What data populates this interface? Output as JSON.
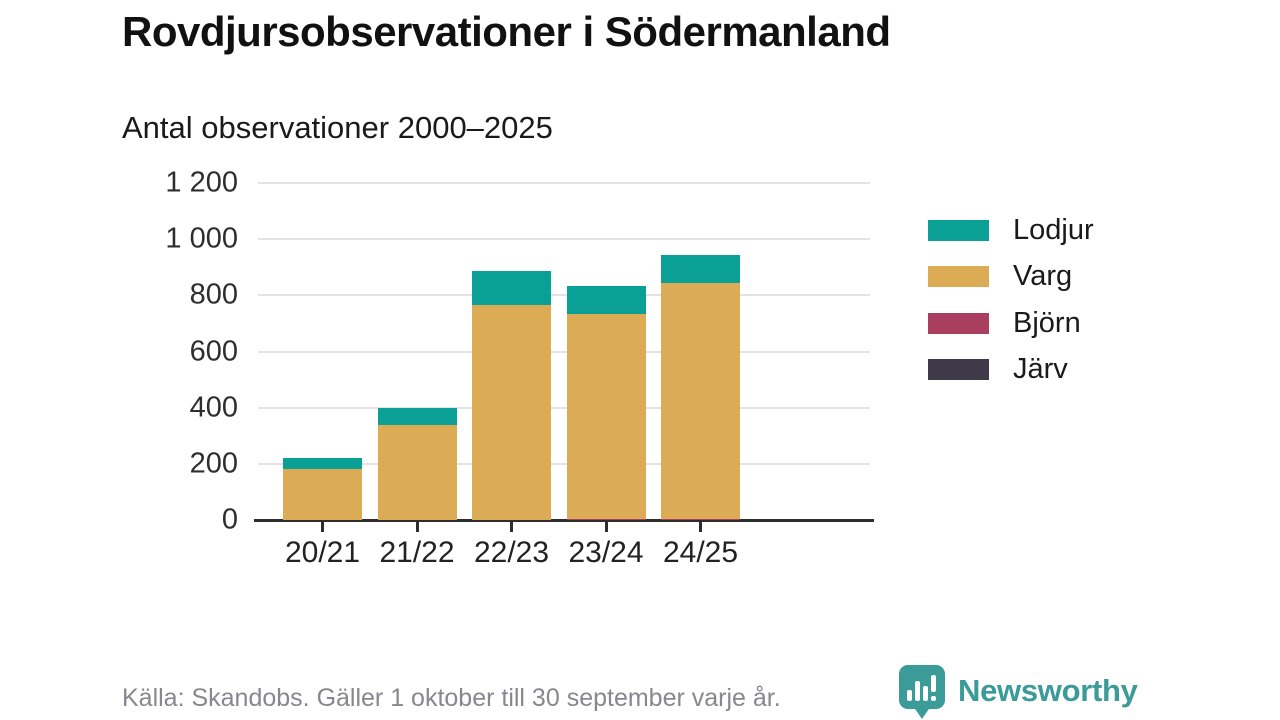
{
  "header": {
    "title": "Rovdjursobservationer i Södermanland",
    "subtitle": "Antal observationer 2000–2025"
  },
  "chart_data": {
    "type": "bar",
    "stacked": true,
    "title": "Rovdjursobservationer i Södermanland",
    "subtitle": "Antal observationer 2000–2025",
    "categories": [
      "20/21",
      "21/22",
      "22/23",
      "23/24",
      "24/25"
    ],
    "series": [
      {
        "name": "Lodjur",
        "color": "#0ba095",
        "values": [
          40,
          60,
          120,
          100,
          100
        ]
      },
      {
        "name": "Varg",
        "color": "#dcab55",
        "values": [
          180,
          340,
          765,
          730,
          840
        ]
      },
      {
        "name": "Björn",
        "color": "#a93e5e",
        "values": [
          0,
          0,
          0,
          5,
          5
        ]
      },
      {
        "name": "Järv",
        "color": "#3e3a4a",
        "values": [
          0,
          0,
          0,
          0,
          0
        ]
      }
    ],
    "stack_order_bottom_to_top": [
      "Järv",
      "Björn",
      "Varg",
      "Lodjur"
    ],
    "ylim": [
      0,
      1200
    ],
    "yticks": [
      0,
      200,
      400,
      600,
      800,
      1000,
      1200
    ],
    "ytick_labels": [
      "0",
      "200",
      "400",
      "600",
      "800",
      "1 000",
      "1 200"
    ],
    "xlabel": "",
    "ylabel": "",
    "grid": "horizontal",
    "legend_position": "right"
  },
  "footer": {
    "source": "Källa: Skandobs. Gäller 1 oktober till 30 september varje år.",
    "brand": "Newsworthy",
    "brand_color": "#3a9b98"
  }
}
